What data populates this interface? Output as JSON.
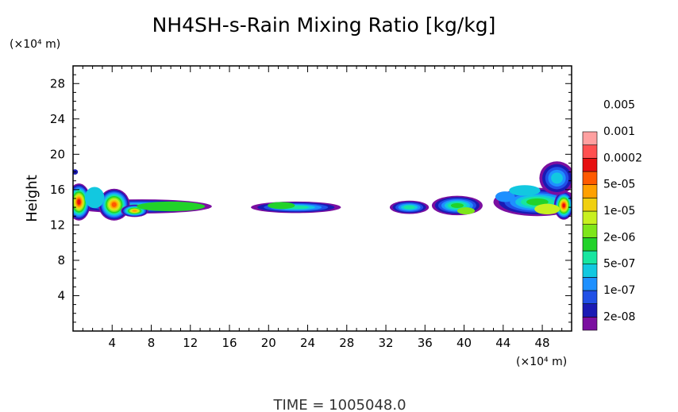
{
  "chart_data": {
    "type": "heatmap",
    "title": "NH4SH-s-Rain Mixing Ratio [kg/kg]",
    "ylabel": "Height",
    "xlabel": "",
    "y_unit": "(×10⁴ m)",
    "x_unit": "(×10⁴ m)",
    "xlim": [
      0,
      51
    ],
    "ylim": [
      0,
      30
    ],
    "x_ticks": [
      4,
      8,
      12,
      16,
      20,
      24,
      28,
      32,
      36,
      40,
      44,
      48
    ],
    "x_tick_labels": [
      "4",
      "8",
      "12",
      "16",
      "20",
      "24",
      "28",
      "32",
      "36",
      "40",
      "44",
      "48"
    ],
    "y_ticks": [
      4,
      8,
      12,
      16,
      20,
      24,
      28
    ],
    "y_tick_labels": [
      "4",
      "8",
      "12",
      "16",
      "20",
      "24",
      "28"
    ],
    "colorbar": {
      "colors": [
        "#7b0fa0",
        "#1a1ab4",
        "#2050e6",
        "#1e90ff",
        "#12c8e0",
        "#18e6a0",
        "#22d22a",
        "#7ee61a",
        "#c8f020",
        "#f0d010",
        "#ffa000",
        "#ff5a00",
        "#e61010",
        "#ff5050",
        "#ffa0a0"
      ],
      "labels": [
        "2e-08",
        "1e-07",
        "5e-07",
        "2e-06",
        "1e-05",
        "5e-05",
        "0.0002",
        "0.001",
        "0.005"
      ]
    },
    "regions": [
      {
        "x": [
          0,
          14
        ],
        "y": [
          13.2,
          15.2
        ],
        "peak": "1e-05"
      },
      {
        "x": [
          0,
          1
        ],
        "y": [
          13.0,
          16.5
        ],
        "peak": "0.001"
      },
      {
        "x": [
          3,
          5.5
        ],
        "y": [
          12.8,
          16.0
        ],
        "peak": "0.0002"
      },
      {
        "x": [
          18.5,
          27.5
        ],
        "y": [
          13.4,
          14.7
        ],
        "peak": "1e-05"
      },
      {
        "x": [
          32.5,
          36.5
        ],
        "y": [
          13.4,
          14.8
        ],
        "peak": "1e-05"
      },
      {
        "x": [
          37,
          42
        ],
        "y": [
          12.8,
          15.8
        ],
        "peak": "5e-05"
      },
      {
        "x": [
          43,
          51
        ],
        "y": [
          12.8,
          19.2
        ],
        "peak": "0.001"
      }
    ],
    "grid": false
  },
  "footer": {
    "time_label": "TIME = 1005048.0"
  }
}
